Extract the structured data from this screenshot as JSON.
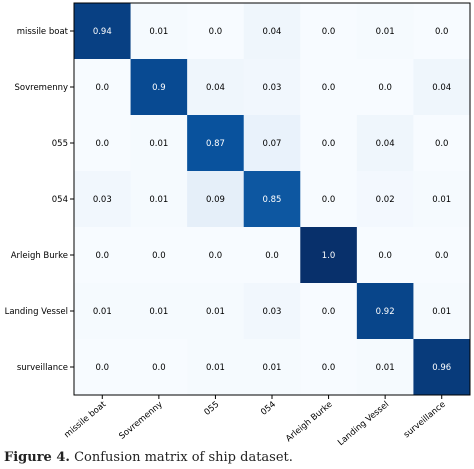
{
  "chart_data": {
    "type": "heatmap",
    "title": "",
    "xlabel": "",
    "ylabel": "",
    "rows": [
      "missile boat",
      "Sovremenny",
      "055",
      "054",
      "Arleigh Burke",
      "Landing Vessel",
      "surveillance"
    ],
    "columns": [
      "missile boat",
      "Sovremenny",
      "055",
      "054",
      "Arleigh Burke",
      "Landing Vessel",
      "surveillance"
    ],
    "values": [
      [
        0.94,
        0.01,
        0.0,
        0.04,
        0.0,
        0.01,
        0.0
      ],
      [
        0.0,
        0.9,
        0.04,
        0.03,
        0.0,
        0.0,
        0.04
      ],
      [
        0.0,
        0.01,
        0.87,
        0.07,
        0.0,
        0.04,
        0.0
      ],
      [
        0.03,
        0.01,
        0.09,
        0.85,
        0.0,
        0.02,
        0.01
      ],
      [
        0.0,
        0.0,
        0.0,
        0.0,
        1.0,
        0.0,
        0.0
      ],
      [
        0.01,
        0.01,
        0.01,
        0.03,
        0.0,
        0.92,
        0.01
      ],
      [
        0.0,
        0.0,
        0.01,
        0.01,
        0.0,
        0.01,
        0.96
      ]
    ],
    "value_labels": [
      [
        "0.94",
        "0.01",
        "0.0",
        "0.04",
        "0.0",
        "0.01",
        "0.0"
      ],
      [
        "0.0",
        "0.9",
        "0.04",
        "0.03",
        "0.0",
        "0.0",
        "0.04"
      ],
      [
        "0.0",
        "0.01",
        "0.87",
        "0.07",
        "0.0",
        "0.04",
        "0.0"
      ],
      [
        "0.03",
        "0.01",
        "0.09",
        "0.85",
        "0.0",
        "0.02",
        "0.01"
      ],
      [
        "0.0",
        "0.0",
        "0.0",
        "0.0",
        "1.0",
        "0.0",
        "0.0"
      ],
      [
        "0.01",
        "0.01",
        "0.01",
        "0.03",
        "0.0",
        "0.92",
        "0.01"
      ],
      [
        "0.0",
        "0.0",
        "0.01",
        "0.01",
        "0.0",
        "0.01",
        "0.96"
      ]
    ],
    "colormap": "Blues",
    "range": [
      0,
      1
    ]
  },
  "caption": {
    "prefix": "Figure 4.",
    "text": "Confusion matrix of ship dataset."
  }
}
